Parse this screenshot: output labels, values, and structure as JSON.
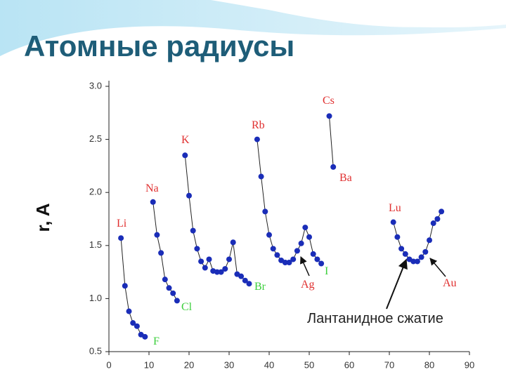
{
  "chart_data": {
    "type": "scatter",
    "title": "Атомные радиусы",
    "y_label": "r, A",
    "xlim": [
      0,
      90
    ],
    "ylim": [
      0.5,
      3.0
    ],
    "xticks": [
      0,
      10,
      20,
      30,
      40,
      50,
      60,
      70,
      80,
      90
    ],
    "yticks": [
      {
        "value": 0.5,
        "label": "0.5"
      },
      {
        "value": 1,
        "label": "1.0"
      },
      {
        "value": 1.5,
        "label": "1.5"
      },
      {
        "value": 2,
        "label": "2.0"
      },
      {
        "value": 2.5,
        "label": "2.5"
      },
      {
        "value": 3,
        "label": "3.0"
      }
    ],
    "marker_color": "#1a2db8",
    "line_color": "#222222",
    "series": [
      {
        "x": [
          3,
          4,
          5,
          6,
          7,
          8,
          9
        ],
        "values": [
          1.57,
          1.12,
          0.88,
          0.77,
          0.74,
          0.66,
          0.64
        ]
      },
      {
        "x": [
          11,
          12,
          13,
          14,
          15,
          16,
          17
        ],
        "values": [
          1.91,
          1.6,
          1.43,
          1.18,
          1.1,
          1.05,
          0.98
        ]
      },
      {
        "x": [
          19,
          20,
          21,
          22,
          23,
          24,
          25,
          26,
          27,
          28,
          29,
          30,
          31,
          32,
          33,
          34,
          35
        ],
        "values": [
          2.35,
          1.97,
          1.64,
          1.47,
          1.35,
          1.29,
          1.37,
          1.26,
          1.25,
          1.25,
          1.28,
          1.37,
          1.53,
          1.23,
          1.21,
          1.17,
          1.14
        ]
      },
      {
        "x": [
          37,
          38,
          39,
          40,
          41,
          42,
          43,
          44,
          45,
          46,
          47,
          48,
          49,
          50,
          51,
          52,
          53
        ],
        "values": [
          2.5,
          2.15,
          1.82,
          1.6,
          1.47,
          1.41,
          1.36,
          1.34,
          1.34,
          1.37,
          1.45,
          1.52,
          1.67,
          1.58,
          1.42,
          1.37,
          1.33
        ]
      },
      {
        "x": [
          55,
          56
        ],
        "values": [
          2.72,
          2.24
        ]
      },
      {
        "x": [
          71,
          72,
          73,
          74,
          75,
          76,
          77,
          78,
          79,
          80,
          81,
          82,
          83
        ],
        "values": [
          1.72,
          1.58,
          1.47,
          1.42,
          1.37,
          1.35,
          1.35,
          1.39,
          1.44,
          1.55,
          1.71,
          1.75,
          1.82
        ]
      }
    ],
    "annotations": [
      {
        "text": "Li",
        "color": "#e03030"
      },
      {
        "text": "F",
        "color": "#3ccf3c"
      },
      {
        "text": "Na",
        "color": "#e03030"
      },
      {
        "text": "Cl",
        "color": "#3ccf3c"
      },
      {
        "text": "K",
        "color": "#e03030"
      },
      {
        "text": "Br",
        "color": "#3ccf3c"
      },
      {
        "text": "Rb",
        "color": "#e03030"
      },
      {
        "text": "I",
        "color": "#3ccf3c"
      },
      {
        "text": "Ag",
        "color": "#e03030"
      },
      {
        "text": "Cs",
        "color": "#e03030"
      },
      {
        "text": "Ba",
        "color": "#e03030"
      },
      {
        "text": "Lu",
        "color": "#e03030"
      },
      {
        "text": "Au",
        "color": "#e03030"
      },
      {
        "text": "Лантанидное сжатие",
        "color": "#222222"
      }
    ]
  }
}
